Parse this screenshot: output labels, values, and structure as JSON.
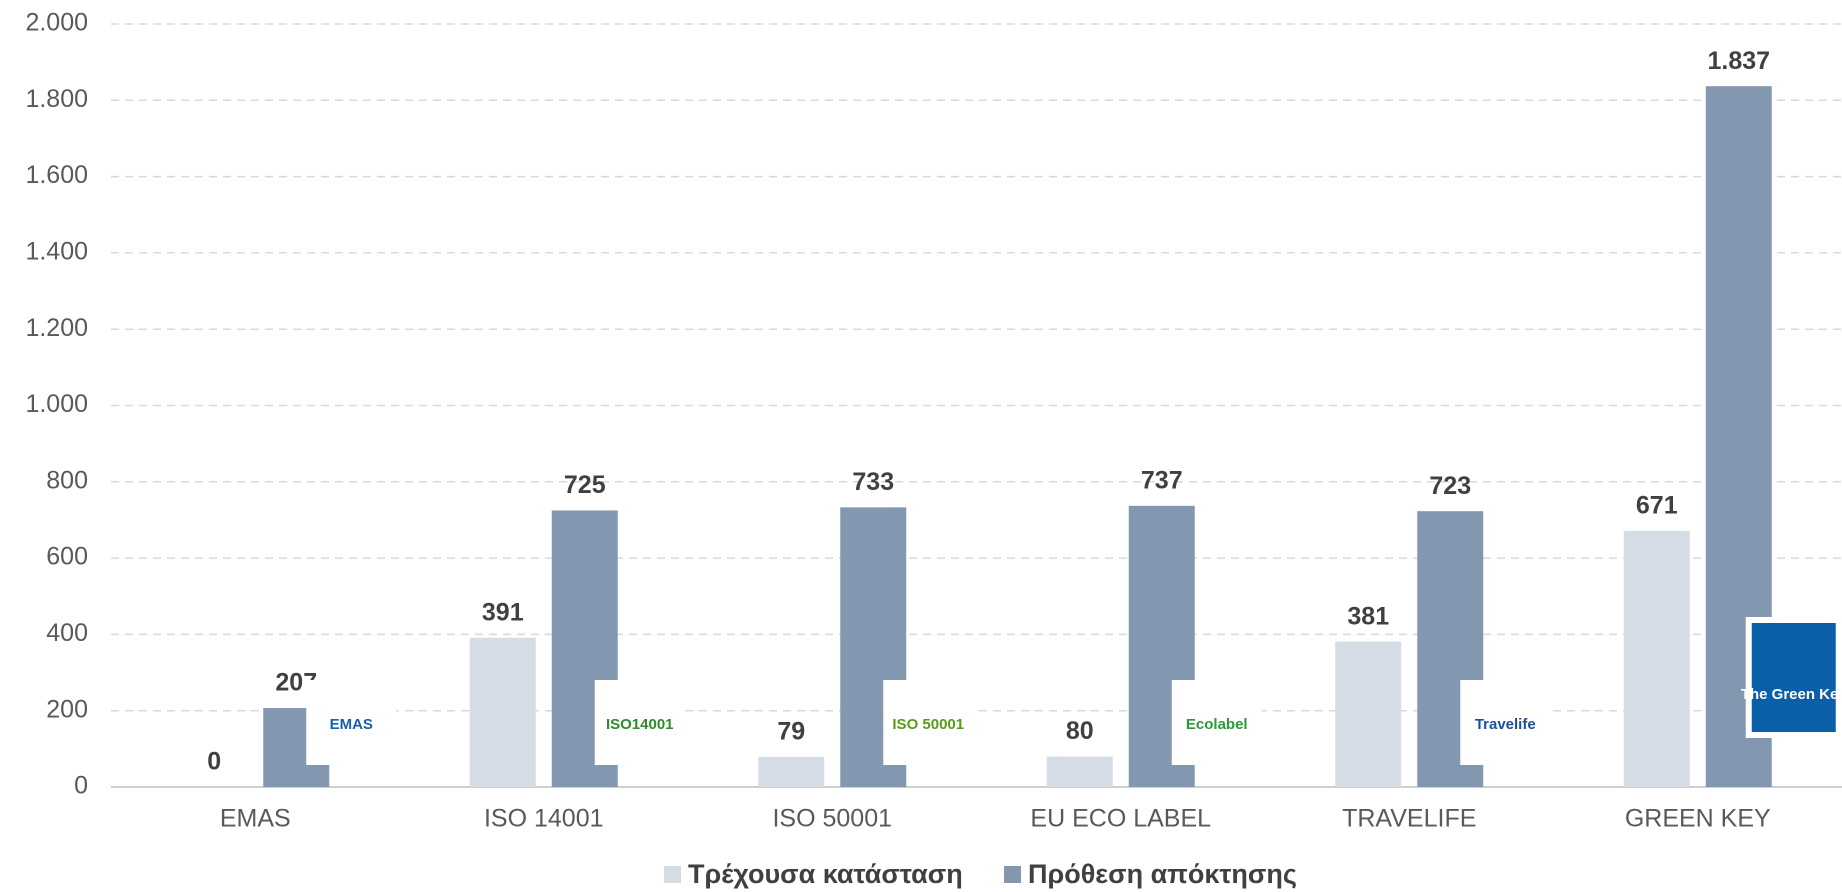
{
  "chart_data": {
    "type": "bar",
    "categories": [
      "EMAS",
      "ISO 14001",
      "ISO 50001",
      "EU ECO LABEL",
      "TRAVELIFE",
      "GREEN KEY"
    ],
    "series": [
      {
        "name": "Τρέχουσα κατάσταση",
        "color": "#d6dce5",
        "values": [
          0,
          391,
          79,
          80,
          381,
          671
        ]
      },
      {
        "name": "Πρόθεση απόκτησης",
        "color": "#8497b0",
        "values": [
          207,
          725,
          733,
          737,
          723,
          1837
        ],
        "value_labels": [
          "207",
          "725",
          "733",
          "737",
          "723",
          "1.837"
        ]
      }
    ],
    "ylim": [
      0,
      2000
    ],
    "yticks": [
      0,
      200,
      400,
      600,
      800,
      {
        "value": 1000,
        "label": "1.000"
      },
      {
        "value": 1200,
        "label": "1.200"
      },
      {
        "value": 1400,
        "label": "1.400"
      },
      {
        "value": 1600,
        "label": "1.600"
      },
      {
        "value": 1800,
        "label": "1.800"
      },
      {
        "value": 2000,
        "label": "2.000"
      }
    ],
    "grid": true,
    "legend": "bottom",
    "logos": [
      "EMAS",
      "ISO14001",
      "ISO 50001",
      "Ecolabel",
      "Travelife",
      "The Green Key"
    ]
  }
}
